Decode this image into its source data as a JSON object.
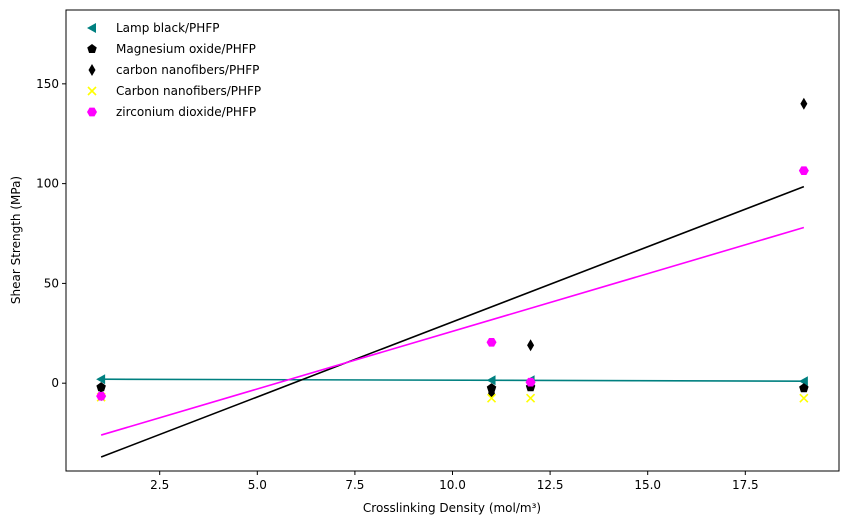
{
  "chart_data": {
    "type": "scatter",
    "title": "",
    "xlabel": "Crosslinking Density (mol/m³)",
    "ylabel": "Shear Strength (MPa)",
    "xlim": [
      0.1,
      19.9
    ],
    "ylim": [
      -44,
      187
    ],
    "xticks": [
      2.5,
      5.0,
      7.5,
      10.0,
      12.5,
      15.0,
      17.5
    ],
    "yticks": [
      0,
      50,
      100,
      150
    ],
    "grid": false,
    "legend_position": "top-left",
    "series": [
      {
        "name": "Lamp black/PHFP",
        "marker": "triangle-left",
        "color": "#008080",
        "x": [
          1,
          11,
          12,
          19
        ],
        "y": [
          2,
          1.5,
          1.5,
          1
        ],
        "fit": {
          "x": [
            1,
            19
          ],
          "y": [
            2,
            1
          ]
        }
      },
      {
        "name": "Magnesium oxide/PHFP",
        "marker": "pentagon",
        "color": "#000000",
        "x": [
          1,
          11,
          12,
          19
        ],
        "y": [
          -2,
          -2.5,
          -2,
          -2.5
        ],
        "fit": null
      },
      {
        "name": "carbon nanofibers/PHFP",
        "marker": "thin-diamond",
        "color": "#000000",
        "x": [
          1,
          11,
          12,
          19
        ],
        "y": [
          -6,
          -5,
          19,
          140
        ],
        "fit": {
          "x": [
            1,
            19
          ],
          "y": [
            -37,
            98.5
          ]
        }
      },
      {
        "name": "Carbon nanofibers/PHFP",
        "marker": "x",
        "color": "#ffff00",
        "x": [
          1,
          11,
          12,
          19
        ],
        "y": [
          -7,
          -7.5,
          -7.5,
          -7.5
        ],
        "fit": null
      },
      {
        "name": "zirconium dioxide/PHFP",
        "marker": "hexagon",
        "color": "#ff00ff",
        "x": [
          1,
          11,
          12,
          19
        ],
        "y": [
          -6.5,
          20.5,
          0.5,
          106.5
        ],
        "fit": {
          "x": [
            1,
            19
          ],
          "y": [
            -26,
            78
          ]
        }
      }
    ]
  }
}
